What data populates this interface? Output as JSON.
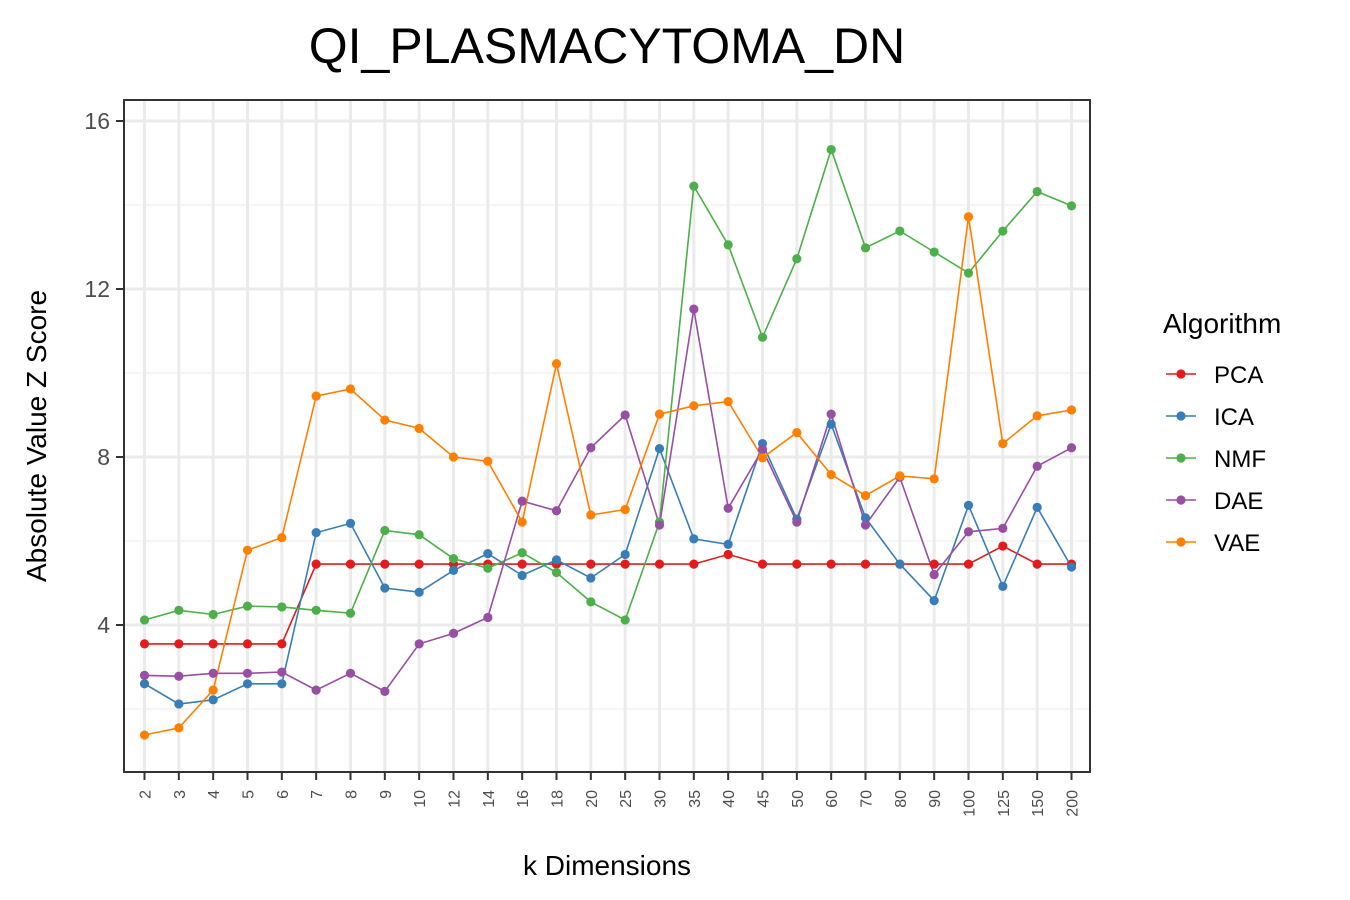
{
  "chart_data": {
    "type": "line",
    "title": "QI_PLASMACYTOMA_DN",
    "xlabel": "k Dimensions",
    "ylabel": "Absolute Value Z Score",
    "categories": [
      "2",
      "3",
      "4",
      "5",
      "6",
      "7",
      "8",
      "9",
      "10",
      "12",
      "14",
      "16",
      "18",
      "20",
      "25",
      "30",
      "35",
      "40",
      "45",
      "50",
      "60",
      "70",
      "80",
      "90",
      "100",
      "125",
      "150",
      "200"
    ],
    "ylim": [
      0.5,
      16.5
    ],
    "yticks": [
      4,
      8,
      12,
      16
    ],
    "ytick_labels": [
      "4",
      "8",
      "12",
      "16"
    ],
    "grid": true,
    "legend": {
      "title": "Algorithm",
      "position": "right"
    },
    "series": [
      {
        "name": "PCA",
        "color": "#e41a1c",
        "values": [
          3.55,
          3.55,
          3.55,
          3.55,
          3.55,
          5.45,
          5.45,
          5.45,
          5.45,
          5.45,
          5.45,
          5.45,
          5.45,
          5.45,
          5.45,
          5.45,
          5.45,
          5.68,
          5.45,
          5.45,
          5.45,
          5.45,
          5.45,
          5.45,
          5.45,
          5.88,
          5.45,
          5.45
        ]
      },
      {
        "name": "ICA",
        "color": "#377eb8",
        "values": [
          2.6,
          2.12,
          2.22,
          2.6,
          2.6,
          6.2,
          6.42,
          4.88,
          4.78,
          5.3,
          5.7,
          5.18,
          5.55,
          5.12,
          5.68,
          8.2,
          6.05,
          5.92,
          8.32,
          6.52,
          8.78,
          6.55,
          5.45,
          4.58,
          6.85,
          4.92,
          6.8,
          5.38
        ]
      },
      {
        "name": "NMF",
        "color": "#4daf4a",
        "values": [
          4.12,
          4.35,
          4.25,
          4.45,
          4.43,
          4.35,
          4.28,
          6.25,
          6.15,
          5.58,
          5.35,
          5.72,
          5.25,
          4.55,
          4.12,
          6.45,
          14.45,
          13.05,
          10.85,
          12.72,
          15.32,
          12.98,
          13.38,
          12.88,
          12.38,
          13.38,
          14.32,
          13.98
        ]
      },
      {
        "name": "DAE",
        "color": "#984ea3",
        "values": [
          2.8,
          2.78,
          2.85,
          2.85,
          2.88,
          2.45,
          2.85,
          2.42,
          3.55,
          3.8,
          4.18,
          6.95,
          6.72,
          8.22,
          9.0,
          6.38,
          11.52,
          6.78,
          8.18,
          6.45,
          9.02,
          6.38,
          7.52,
          5.2,
          6.22,
          6.3,
          7.78,
          8.22
        ]
      },
      {
        "name": "VAE",
        "color": "#ff7f00",
        "values": [
          1.38,
          1.55,
          2.45,
          5.78,
          6.08,
          9.45,
          9.62,
          8.88,
          8.68,
          8.0,
          7.9,
          6.45,
          10.22,
          6.62,
          6.75,
          9.02,
          9.22,
          9.32,
          7.98,
          8.58,
          7.58,
          7.08,
          7.55,
          7.48,
          13.72,
          8.32,
          8.98,
          9.12
        ]
      }
    ]
  }
}
